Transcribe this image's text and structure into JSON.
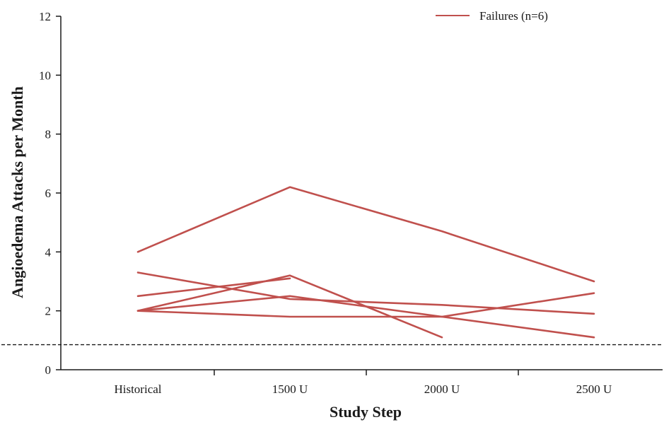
{
  "chart_data": {
    "type": "line",
    "title": "",
    "xlabel": "Study Step",
    "ylabel": "Angioedema Attacks per Month",
    "categories": [
      "Historical",
      "1500 U",
      "2000 U",
      "2500 U"
    ],
    "ylim": [
      0,
      12
    ],
    "yticks": [
      "0",
      "2",
      "4",
      "6",
      "8",
      "10",
      "12"
    ],
    "grid": false,
    "legend": {
      "placement": "top-right",
      "entries": [
        "Failures (n=6)"
      ]
    },
    "series_color": "#c0504d",
    "reference_line": {
      "y": 0.85,
      "style": "dashed"
    },
    "series": [
      {
        "values": [
          4.0,
          6.2,
          4.7,
          3.0
        ]
      },
      {
        "values": [
          3.3,
          2.4,
          2.2,
          1.9
        ]
      },
      {
        "values": [
          2.5,
          3.1,
          null,
          null
        ]
      },
      {
        "values": [
          2.0,
          3.2,
          1.1,
          null
        ]
      },
      {
        "values": [
          2.0,
          2.5,
          1.8,
          1.1
        ]
      },
      {
        "values": [
          2.0,
          1.8,
          1.8,
          2.6
        ]
      }
    ]
  }
}
